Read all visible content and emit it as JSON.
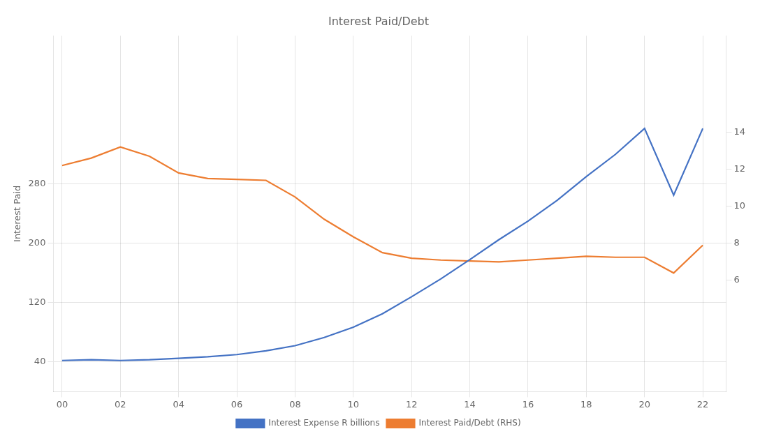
{
  "chart_data": {
    "type": "line",
    "title": "Interest Paid/Debt",
    "y_label": "Interest Paid",
    "x": [
      0,
      1,
      2,
      3,
      4,
      5,
      6,
      7,
      8,
      9,
      10,
      11,
      12,
      13,
      14,
      15,
      16,
      17,
      18,
      19,
      20,
      21,
      22
    ],
    "xlim": [
      -0.3,
      22.8
    ],
    "xticks": [
      {
        "value": 0,
        "label": "00"
      },
      {
        "value": 2,
        "label": "02"
      },
      {
        "value": 4,
        "label": "04"
      },
      {
        "value": 6,
        "label": "06"
      },
      {
        "value": 8,
        "label": "08"
      },
      10,
      12,
      14,
      16,
      18,
      20,
      22
    ],
    "ylim": [
      0,
      480
    ],
    "yticks": [
      40,
      120,
      200,
      280
    ],
    "y2lim": [
      0,
      19.2
    ],
    "y2ticks": [
      6,
      8,
      10,
      12,
      14
    ],
    "grid": true,
    "legend": "bottom",
    "series": [
      {
        "name": "Interest Expense R billions",
        "color": "#4472C4",
        "values": [
          42,
          43,
          42,
          43,
          45,
          47,
          50,
          55,
          62,
          73,
          87,
          105,
          128,
          152,
          178,
          205,
          230,
          258,
          290,
          320,
          355,
          265,
          355
        ]
      },
      {
        "name": "Interest Paid/Debt (RHS)",
        "color": "#ED7D31",
        "axis": "y2",
        "values": [
          12.2,
          12.6,
          13.2,
          12.7,
          11.8,
          11.5,
          11.45,
          11.4,
          10.5,
          9.3,
          8.35,
          7.5,
          7.2,
          7.1,
          7.05,
          7.0,
          7.1,
          7.2,
          7.3,
          7.25,
          7.25,
          6.4,
          7.9
        ]
      }
    ]
  }
}
